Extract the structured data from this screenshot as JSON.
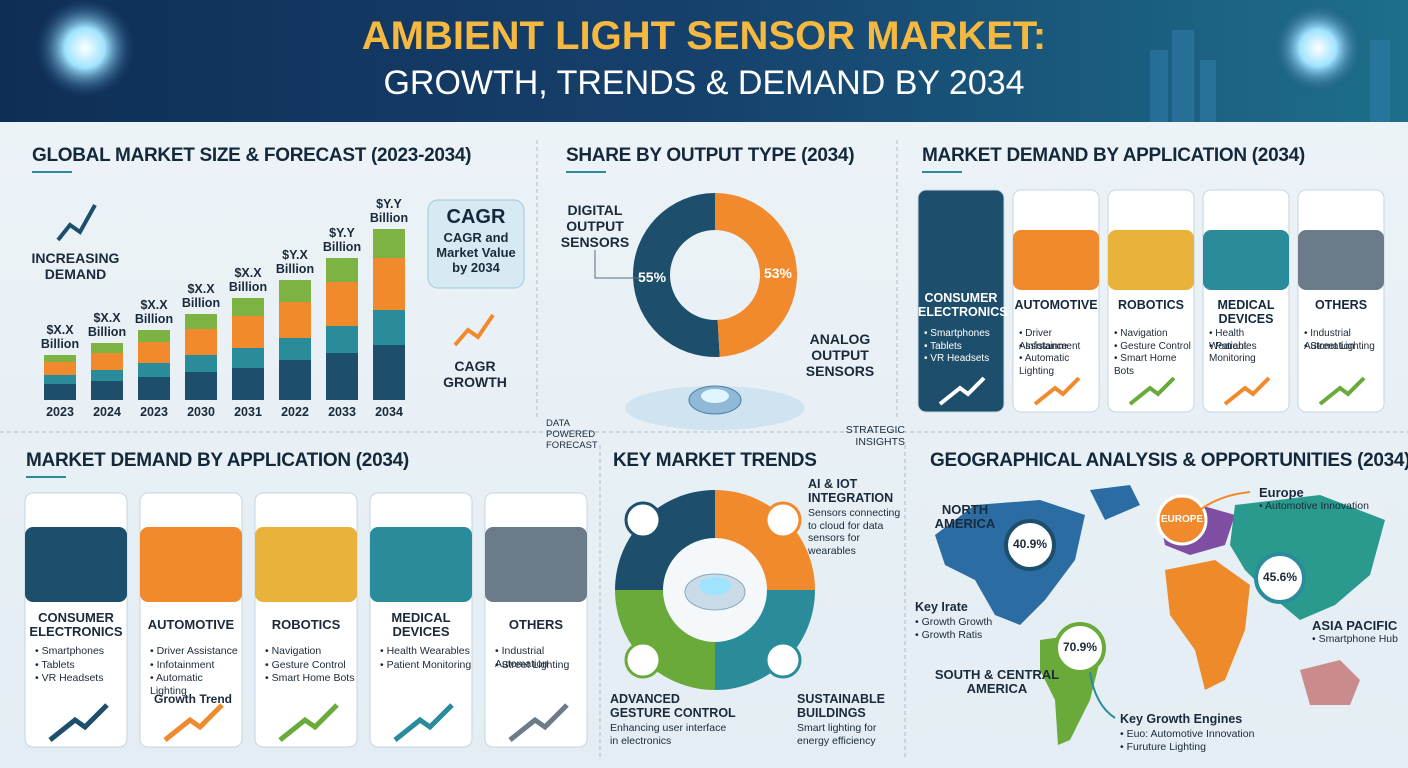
{
  "header": {
    "title": "AMBIENT LIGHT SENSOR MARKET:",
    "subtitle": "GROWTH, TRENDS & DEMAND BY 2034"
  },
  "market_size": {
    "title": "GLOBAL MARKET SIZE & FORECAST (2023-2034)",
    "notes": [
      "INCREASING DEMAND",
      "CAGR GROWTH"
    ],
    "cagr": {
      "title": "CAGR",
      "text": "CAGR and Market Value by 2034"
    },
    "categories": [
      "2023",
      "2024",
      "2023",
      "2030",
      "2031",
      "2022",
      "2033",
      "2034"
    ],
    "bar_labels": [
      "$X.X Billion",
      "$X.X Billion",
      "$X.X Billion",
      "$X.X Billion",
      "$X.X Billion",
      "$Y.X Billion",
      "$Y.Y Billion",
      "$Y.Y Billion"
    ],
    "series": [
      {
        "color": "#1d4e6b",
        "values": [
          16,
          19,
          23,
          28,
          32,
          40,
          47,
          55
        ]
      },
      {
        "color": "#2a8c9a",
        "values": [
          9,
          11,
          14,
          17,
          20,
          22,
          27,
          35
        ]
      },
      {
        "color": "#f08a2c",
        "values": [
          13,
          17,
          21,
          26,
          32,
          36,
          44,
          52
        ]
      },
      {
        "color": "#7cb342",
        "values": [
          7,
          10,
          12,
          15,
          18,
          22,
          24,
          29
        ]
      }
    ]
  },
  "output_share": {
    "title": "SHARE BY OUTPUT TYPE (2034)",
    "segments": [
      {
        "name": "DIGITAL OUTPUT SENSORS",
        "value": 55,
        "value_label": "55%",
        "color": "#1d4e6b"
      },
      {
        "name": "ANALOG OUTPUT SENSORS",
        "value": 53,
        "value_label": "53%",
        "color": "#f08a2c"
      }
    ],
    "captions": [
      "DATA POWERED FORECAST",
      "STRATEGIC INSIGHTS"
    ]
  },
  "applications_top": {
    "title": "MARKET DEMAND BY APPLICATION (2034)",
    "cards": [
      {
        "title": "CONSUMER ELECTRONICS",
        "items": [
          "Smartphones",
          "Tablets",
          "VR Headsets"
        ]
      },
      {
        "title": "AUTOMOTIVE",
        "items": [
          "Driver Assistance",
          "Infotainment",
          "Automatic Lighting"
        ]
      },
      {
        "title": "ROBOTICS",
        "items": [
          "Navigation",
          "Gesture Control",
          "Smart Home Bots"
        ]
      },
      {
        "title": "MEDICAL DEVICES",
        "items": [
          "Health Wearables",
          "Patient Monitoring"
        ]
      },
      {
        "title": "OTHERS",
        "items": [
          "Industrial Automation",
          "Street Lighting"
        ]
      }
    ]
  },
  "applications_bottom": {
    "title": "MARKET DEMAND BY APPLICATION (2034)",
    "cards": [
      {
        "title": "CONSUMER ELECTRONICS",
        "items": [
          "Smartphones",
          "Tablets",
          "VR Headsets"
        ]
      },
      {
        "title": "AUTOMOTIVE",
        "items": [
          "Driver Assistance",
          "Infotainment",
          "Automatic Lighting"
        ],
        "note": "Growth Trend"
      },
      {
        "title": "ROBOTICS",
        "items": [
          "Navigation",
          "Gesture Control",
          "Smart Home Bots"
        ]
      },
      {
        "title": "MEDICAL DEVICES",
        "items": [
          "Health Wearables",
          "Patient Monitoring"
        ]
      },
      {
        "title": "OTHERS",
        "items": [
          "Industrial Automation",
          "Street Lighting"
        ]
      }
    ]
  },
  "trends": {
    "title": "KEY MARKET TRENDS",
    "items": [
      {
        "title": "AI & IOT INTEGRATION",
        "text": "Sensors connecting to cloud for data sensors for wearables"
      },
      {
        "title": "ADVANCED GESTURE CONTROL",
        "text": "Enhancing user interface in electronics"
      },
      {
        "title": "SUSTAINABLE BUILDINGS",
        "text": "Smart lighting for energy efficiency"
      }
    ]
  },
  "geography": {
    "title": "GEOGRAPHICAL ANALYSIS & OPPORTUNITIES (2034)",
    "north_america": {
      "name": "NORTH AMERICA",
      "share": "40.9%"
    },
    "europe": {
      "pin": "EUROPE",
      "name": "Europe",
      "note": "Automotive Innovation"
    },
    "asia_pacific": {
      "name": "ASIA PACIFIC",
      "share": "45.6%",
      "note": "Smartphone Hub"
    },
    "south_america": {
      "name": "SOUTH & CENTRAL AMERICA",
      "share": "70.9%"
    },
    "key_rate": {
      "title": "Key Irate",
      "items": [
        "Growth Growth",
        "Growth Ratis"
      ]
    },
    "key_engines": {
      "title": "Key Growth Engines",
      "items": [
        "Euo: Automotive Innovation",
        "Furuture Lighting"
      ]
    }
  }
}
